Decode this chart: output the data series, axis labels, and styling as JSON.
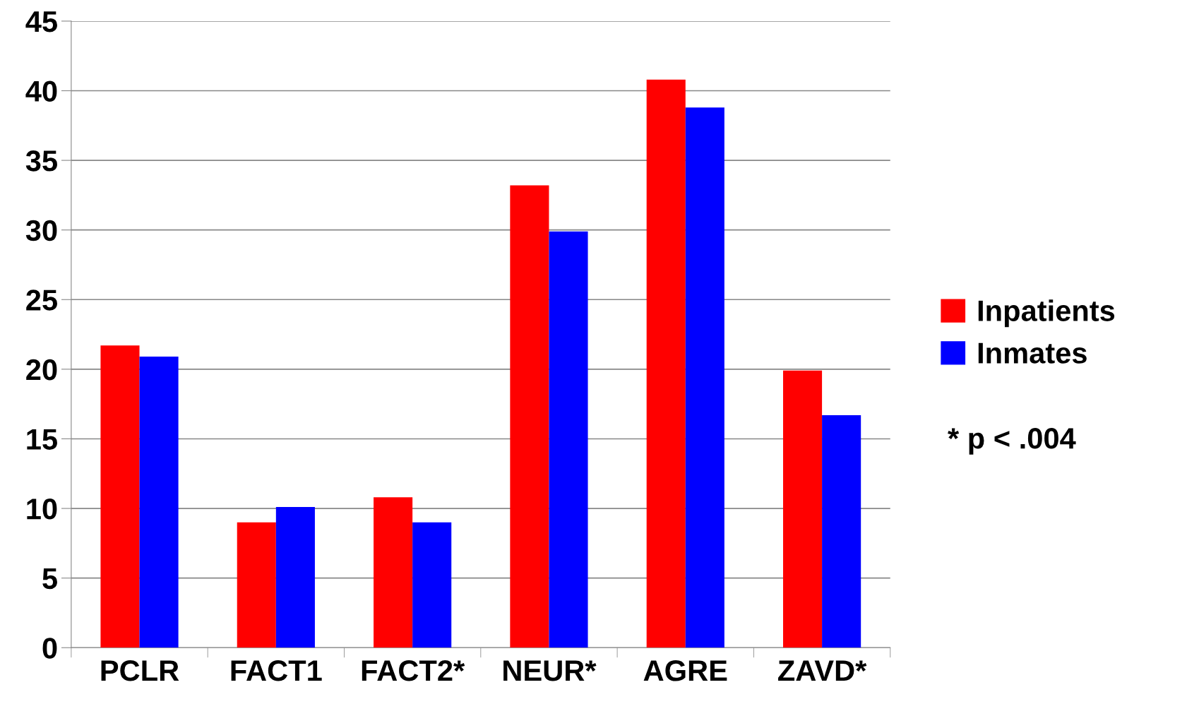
{
  "chart_data": {
    "type": "bar",
    "categories": [
      "PCLR",
      "FACT1",
      "FACT2*",
      "NEUR*",
      "AGRE",
      "ZAVD*"
    ],
    "series": [
      {
        "name": "Inpatients",
        "color": "#ff0000",
        "values": [
          21.7,
          9.0,
          10.8,
          33.2,
          40.8,
          19.9
        ]
      },
      {
        "name": "Inmates",
        "color": "#0000ff",
        "values": [
          20.9,
          10.1,
          9.0,
          29.9,
          38.8,
          16.7
        ]
      }
    ],
    "ylim": [
      0,
      45
    ],
    "yticks": [
      0,
      5,
      10,
      15,
      20,
      25,
      30,
      35,
      40,
      45
    ],
    "grid": "y",
    "legend": "right",
    "annotations": [
      "* p < .004"
    ]
  }
}
